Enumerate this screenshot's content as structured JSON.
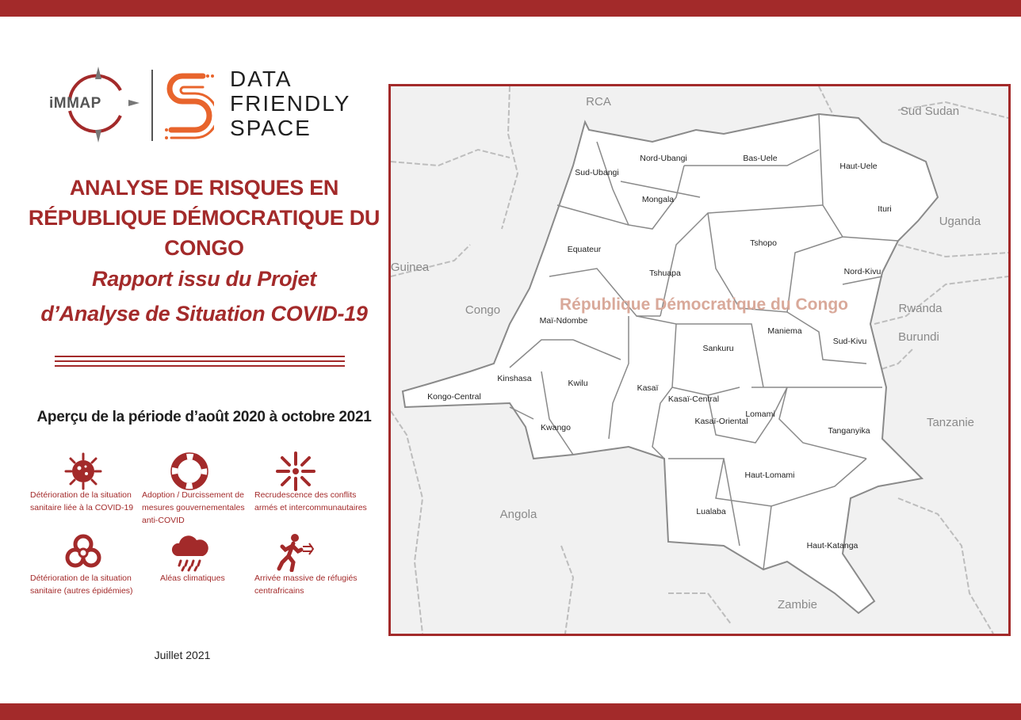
{
  "colors": {
    "brand_red": "#a32a2a",
    "dfs_orange": "#e8642c",
    "map_bg": "#f1f1f1",
    "province_fill": "#ffffff"
  },
  "logos": {
    "immap": "iMMAP",
    "dfs_line1": "DATA",
    "dfs_line2": "FRIENDLY",
    "dfs_line3": "SPACE"
  },
  "title": {
    "line1": "ANALYSE DE RISQUES EN",
    "line2": "RÉPUBLIQUE DÉMOCRATIQUE DU CONGO"
  },
  "subtitle": {
    "line1": "Rapport issu du Projet",
    "line2": "d’Analyse de Situation COVID-19"
  },
  "period": "Aperçu de la période d’août 2020 à octobre 2021",
  "risks": [
    {
      "icon": "virus-icon",
      "label": "Détérioration de la situation sanitaire liée à la COVID-19"
    },
    {
      "icon": "lifebuoy-icon",
      "label": "Adoption / Durcissement de mesures gouvernementales anti-COVID"
    },
    {
      "icon": "explosion-icon",
      "label": "Recrudescence des conflits armés et intercommunautaires"
    },
    {
      "icon": "biohazard-icon",
      "label": "Détérioration de la situation sanitaire (autres épidémies)"
    },
    {
      "icon": "rain-cloud-icon",
      "label": "Aléas climatiques"
    },
    {
      "icon": "refugee-running-icon",
      "label": "Arrivée massive de réfugiés centrafricains"
    }
  ],
  "date": "Juillet 2021",
  "map": {
    "country": "République Démocratique du Congo",
    "neighbors": [
      "RCA",
      "Sud Sudan",
      "Uganda",
      "Rwanda",
      "Burundi",
      "Tanzanie",
      "Zambie",
      "Angola",
      "Congo",
      "Guinea"
    ],
    "provinces": [
      "Nord-Ubangi",
      "Bas-Uele",
      "Haut-Uele",
      "Sud-Ubangi",
      "Mongala",
      "Ituri",
      "Tshopo",
      "Equateur",
      "Tshuapa",
      "Nord-Kivu",
      "Maï-Ndombe",
      "Maniema",
      "Sud-Kivu",
      "Sankuru",
      "Kinshasa",
      "Kwilu",
      "Kasaï",
      "Kongo-Central",
      "Kasaï-Central",
      "Lomami",
      "Kasaï-Oriental",
      "Tanganyika",
      "Kwango",
      "Haut-Lomami",
      "Lualaba",
      "Haut-Katanga"
    ]
  }
}
